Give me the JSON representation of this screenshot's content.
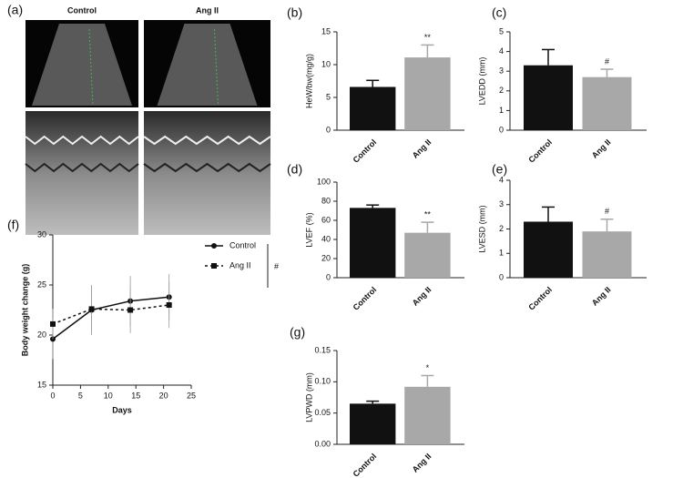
{
  "chart_data": [
    {
      "type": "image",
      "panel": "(a)",
      "labels": [
        "Control",
        "Ang II"
      ]
    },
    {
      "type": "bar",
      "panel": "(b)",
      "y_label": "HeW/bw(mg/g)",
      "categories": [
        "Control",
        "Ang II"
      ],
      "values": [
        6.6,
        11.1
      ],
      "errors": [
        1.0,
        1.9
      ],
      "colors": [
        "#111111",
        "#a8a8a8"
      ],
      "ylim": [
        0,
        15
      ],
      "yticks": [
        0,
        5,
        10,
        15
      ],
      "annotation": "**"
    },
    {
      "type": "bar",
      "panel": "(c)",
      "y_label": "LVEDD (mm)",
      "categories": [
        "Control",
        "Ang II"
      ],
      "values": [
        3.3,
        2.7
      ],
      "errors": [
        0.8,
        0.4
      ],
      "colors": [
        "#111111",
        "#a8a8a8"
      ],
      "ylim": [
        0,
        5
      ],
      "yticks": [
        0,
        1,
        2,
        3,
        4,
        5
      ],
      "annotation": "#"
    },
    {
      "type": "bar",
      "panel": "(d)",
      "y_label": "LVEF (%)",
      "categories": [
        "Control",
        "Ang II"
      ],
      "values": [
        73,
        47
      ],
      "errors": [
        3,
        11
      ],
      "colors": [
        "#111111",
        "#a8a8a8"
      ],
      "ylim": [
        0,
        100
      ],
      "yticks": [
        0,
        20,
        40,
        60,
        80,
        100
      ],
      "annotation": "**"
    },
    {
      "type": "bar",
      "panel": "(e)",
      "y_label": "LVESD (mm)",
      "categories": [
        "Control",
        "Ang II"
      ],
      "values": [
        2.3,
        1.9
      ],
      "errors": [
        0.6,
        0.5
      ],
      "colors": [
        "#111111",
        "#a8a8a8"
      ],
      "ylim": [
        0,
        4
      ],
      "yticks": [
        0,
        1,
        2,
        3,
        4
      ],
      "annotation": "#"
    },
    {
      "type": "line",
      "panel": "(f)",
      "y_label": "Body weight change (g)",
      "x_label": "Days",
      "x": [
        0,
        7,
        14,
        21
      ],
      "series": [
        {
          "name": "Control",
          "color": "#111111",
          "line_style": "solid",
          "marker": "circle",
          "values": [
            19.6,
            22.5,
            23.4,
            23.8
          ],
          "errors": [
            2.0,
            2.5,
            2.5,
            2.3
          ]
        },
        {
          "name": "Ang II",
          "color": "#111111",
          "line_style": "dashed",
          "marker": "square",
          "values": [
            21.1,
            22.6,
            22.5,
            23.0
          ],
          "errors": [
            1.5,
            2.3,
            2.3,
            2.3
          ]
        }
      ],
      "xlim": [
        0,
        25
      ],
      "xticks": [
        0,
        5,
        10,
        15,
        20,
        25
      ],
      "ylim": [
        15,
        30
      ],
      "yticks": [
        15,
        20,
        25,
        30
      ],
      "annotation": "#"
    },
    {
      "type": "bar",
      "panel": "(g)",
      "y_label": "LVPWD (mm)",
      "categories": [
        "Control",
        "Ang II"
      ],
      "values": [
        0.065,
        0.092
      ],
      "errors": [
        0.004,
        0.018
      ],
      "colors": [
        "#111111",
        "#a8a8a8"
      ],
      "ylim": [
        0,
        0.15
      ],
      "yticks": [
        {
          "value": 0,
          "label": "0.00"
        },
        {
          "value": 0.05,
          "label": "0.05"
        },
        {
          "value": 0.1,
          "label": "0.10"
        },
        {
          "value": 0.15,
          "label": "0.15"
        }
      ],
      "annotation": "*"
    }
  ]
}
